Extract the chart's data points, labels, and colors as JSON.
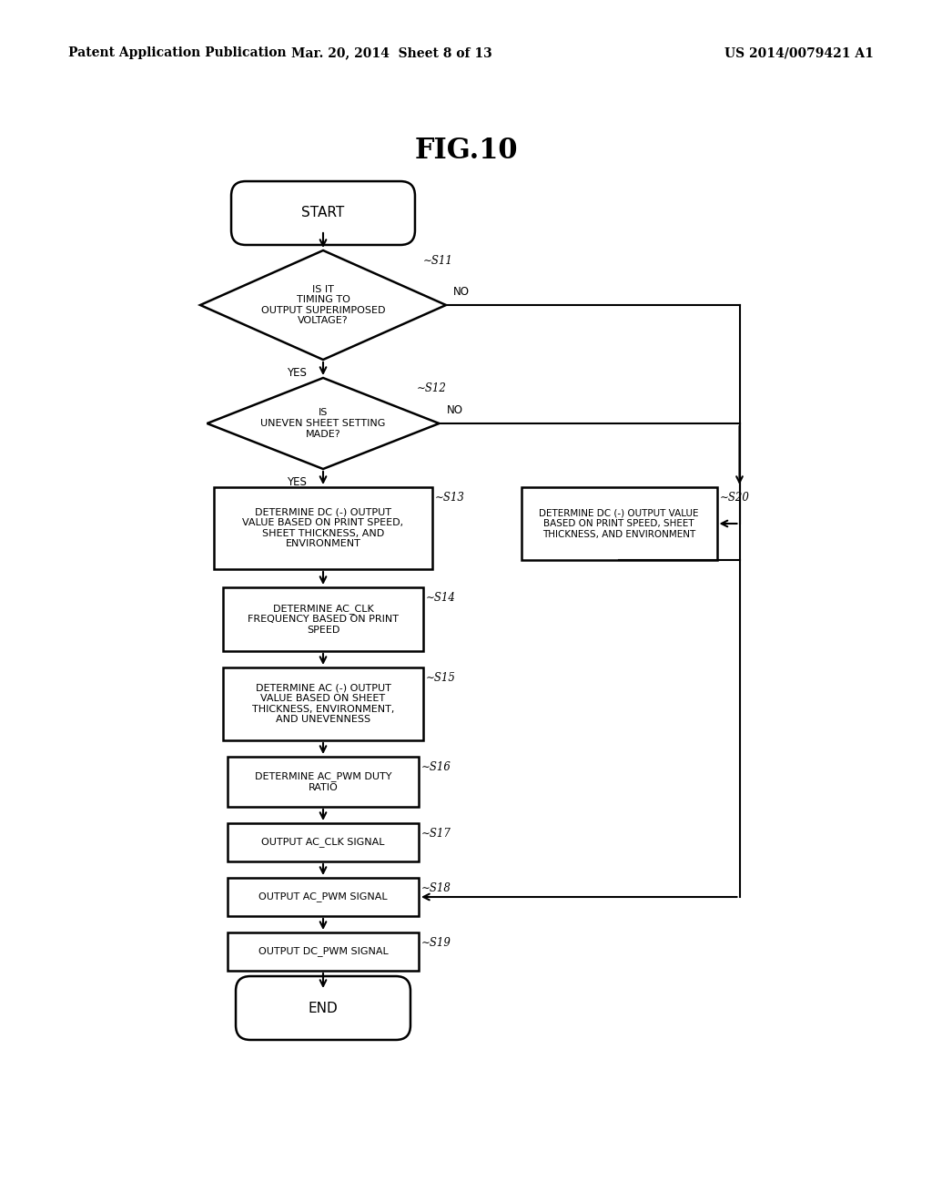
{
  "title": "FIG.10",
  "header_left": "Patent Application Publication",
  "header_mid": "Mar. 20, 2014  Sheet 8 of 13",
  "header_right": "US 2014/0079421 A1",
  "background_color": "#ffffff",
  "line_color": "#000000",
  "fig_width": 10.24,
  "fig_height": 13.2,
  "dpi": 100
}
